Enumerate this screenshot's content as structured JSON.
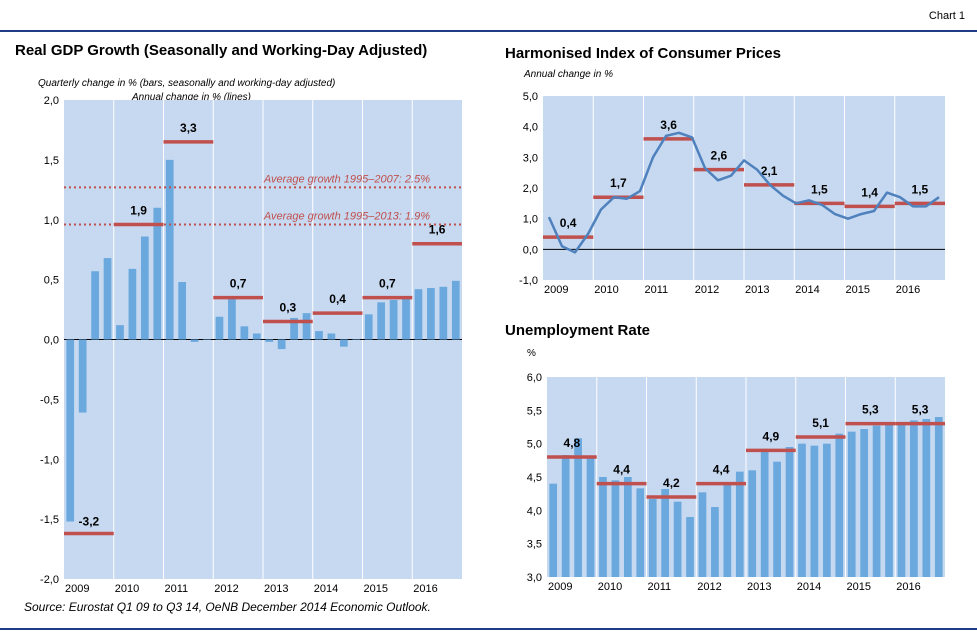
{
  "page": {
    "chart_number": "Chart 1",
    "source": "Source: Eurostat Q1 09 to Q3 14, OeNB December 2014 Economic  Outlook."
  },
  "colors": {
    "plot_bg": "#c6d9f1",
    "bar": "#6aa8de",
    "annual": "#c0504d",
    "line": "#4f81bd",
    "rule": "#1f3c88"
  },
  "chart_data": [
    {
      "id": "gdp",
      "type": "bar",
      "title": "Real GDP Growth (Seasonally and Working-Day Adjusted)",
      "subtitle_1": "Quarterly change in % (bars, seasonally and working-day adjusted)",
      "subtitle_2": "Annual change in % (lines)",
      "ylim": [
        -2.0,
        2.0
      ],
      "y_ticks": [
        "2,0",
        "1,5",
        "1,0",
        "0,5",
        "0,0",
        "-0,5",
        "-1,0",
        "-1,5",
        "-2,0"
      ],
      "x_labels": [
        "2009",
        "2010",
        "2011",
        "2012",
        "2013",
        "2014",
        "2015",
        "2016"
      ],
      "quarterly": [
        -1.52,
        -0.61,
        0.57,
        0.68,
        0.12,
        0.59,
        0.86,
        1.1,
        1.5,
        0.48,
        -0.02,
        0.0,
        0.19,
        0.35,
        0.11,
        0.05,
        -0.02,
        -0.08,
        0.18,
        0.22,
        0.07,
        0.05,
        -0.06,
        0.0,
        0.21,
        0.31,
        0.33,
        0.36,
        0.42,
        0.43,
        0.44,
        0.49
      ],
      "annual": [
        -3.2,
        1.9,
        3.3,
        0.7,
        0.3,
        0.4,
        0.7,
        1.6
      ],
      "annual_labels": [
        "-3,2",
        "1,9",
        "3,3",
        "0,7",
        "0,3",
        "0,4",
        "0,7",
        "1,6"
      ],
      "annual_plot": [
        -1.62,
        0.96,
        1.65,
        0.35,
        0.15,
        0.22,
        0.35,
        0.8
      ],
      "ref_lines": [
        {
          "label": "Average growth 1995–2007: 2.5%",
          "value": 1.27
        },
        {
          "label": "Average growth 1995–2013: 1.9%",
          "value": 0.96
        }
      ]
    },
    {
      "id": "hicp",
      "type": "line",
      "title": "Harmonised Index of Consumer Prices",
      "ylabel": "Annual change in %",
      "ylim": [
        -1.0,
        5.0
      ],
      "y_ticks": [
        "5,0",
        "4,0",
        "3,0",
        "2,0",
        "1,0",
        "0,0",
        "-1,0"
      ],
      "x_labels": [
        "2009",
        "2010",
        "2011",
        "2012",
        "2013",
        "2014",
        "2015",
        "2016"
      ],
      "monthly": [
        1.05,
        0.1,
        -0.1,
        0.5,
        1.3,
        1.7,
        1.65,
        1.9,
        3.0,
        3.7,
        3.8,
        3.65,
        2.65,
        2.25,
        2.4,
        2.9,
        2.6,
        2.1,
        1.75,
        1.5,
        1.6,
        1.45,
        1.15,
        1.0,
        1.15,
        1.25,
        1.85,
        1.7,
        1.4,
        1.4,
        1.7
      ],
      "annual": [
        0.4,
        1.7,
        3.6,
        2.6,
        2.1,
        1.5,
        1.4,
        1.5
      ],
      "annual_labels": [
        "0,4",
        "1,7",
        "3,6",
        "2,6",
        "2,1",
        "1,5",
        "1,4",
        "1,5"
      ]
    },
    {
      "id": "unemp",
      "type": "bar",
      "title": "Unemployment Rate",
      "ylabel": "%",
      "ylim": [
        3.0,
        6.0
      ],
      "y_ticks": [
        "6,0",
        "5,5",
        "5,0",
        "4,5",
        "4,0",
        "3,5",
        "3,0"
      ],
      "x_labels": [
        "2009",
        "2010",
        "2011",
        "2012",
        "2013",
        "2014",
        "2015",
        "2016"
      ],
      "quarterly": [
        4.4,
        4.83,
        5.08,
        4.82,
        4.5,
        4.45,
        4.5,
        4.33,
        4.17,
        4.32,
        4.13,
        3.9,
        4.27,
        4.05,
        4.38,
        4.58,
        4.6,
        4.88,
        4.73,
        4.95,
        5.0,
        4.97,
        5.0,
        5.15,
        5.18,
        5.22,
        5.27,
        5.3,
        5.32,
        5.35,
        5.37,
        5.4
      ],
      "annual": [
        4.8,
        4.4,
        4.2,
        4.4,
        4.9,
        5.1,
        5.3,
        5.3
      ],
      "annual_labels": [
        "4,8",
        "4,4",
        "4,2",
        "4,4",
        "4,9",
        "5,1",
        "5,3",
        "5,3"
      ]
    }
  ]
}
